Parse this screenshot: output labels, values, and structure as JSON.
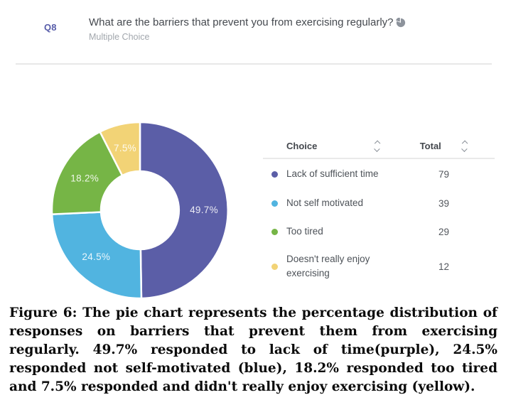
{
  "question": {
    "number": "Q8",
    "text": "What are the barriers that prevent you from exercising regularly?",
    "type_label": "Multiple Choice",
    "icon": "pie-chart-icon"
  },
  "chart_data": {
    "type": "pie",
    "donut": true,
    "start_angle_deg": 0,
    "direction": "clockwise",
    "categories": [
      "Lack of sufficient time",
      "Not self motivated",
      "Too tired",
      "Doesn't really enjoy exercising"
    ],
    "values": [
      49.7,
      24.5,
      18.2,
      7.5
    ],
    "counts": [
      79,
      39,
      29,
      12
    ],
    "labels": [
      "49.7%",
      "24.5%",
      "18.2%",
      "7.5%"
    ],
    "colors": [
      "#5b5ea7",
      "#51b4e0",
      "#76b546",
      "#f2d376"
    ],
    "label_color": "#ffffff",
    "legend_position": "table-right"
  },
  "table": {
    "headers": [
      {
        "label": "Choice",
        "sort_icon": "sort-arrows-icon"
      },
      {
        "label": "Total",
        "sort_icon": "sort-arrows-icon"
      }
    ],
    "rows": [
      {
        "choice": "Lack of sufficient time",
        "total": "79",
        "color": "#5b5ea7"
      },
      {
        "choice": "Not self motivated",
        "total": "39",
        "color": "#51b4e0"
      },
      {
        "choice": "Too tired",
        "total": "29",
        "color": "#76b546"
      },
      {
        "choice": "Doesn't really enjoy exercising",
        "total": "12",
        "color": "#f2d376"
      }
    ]
  },
  "caption": "Figure 6: The pie chart represents the percentage distribution of responses on barriers that prevent them from exercising regularly. 49.7% responded to lack of time(purple), 24.5% responded not self-motivated (blue), 18.2% responded too tired and 7.5% responded and didn't really enjoy exercising (yellow)."
}
